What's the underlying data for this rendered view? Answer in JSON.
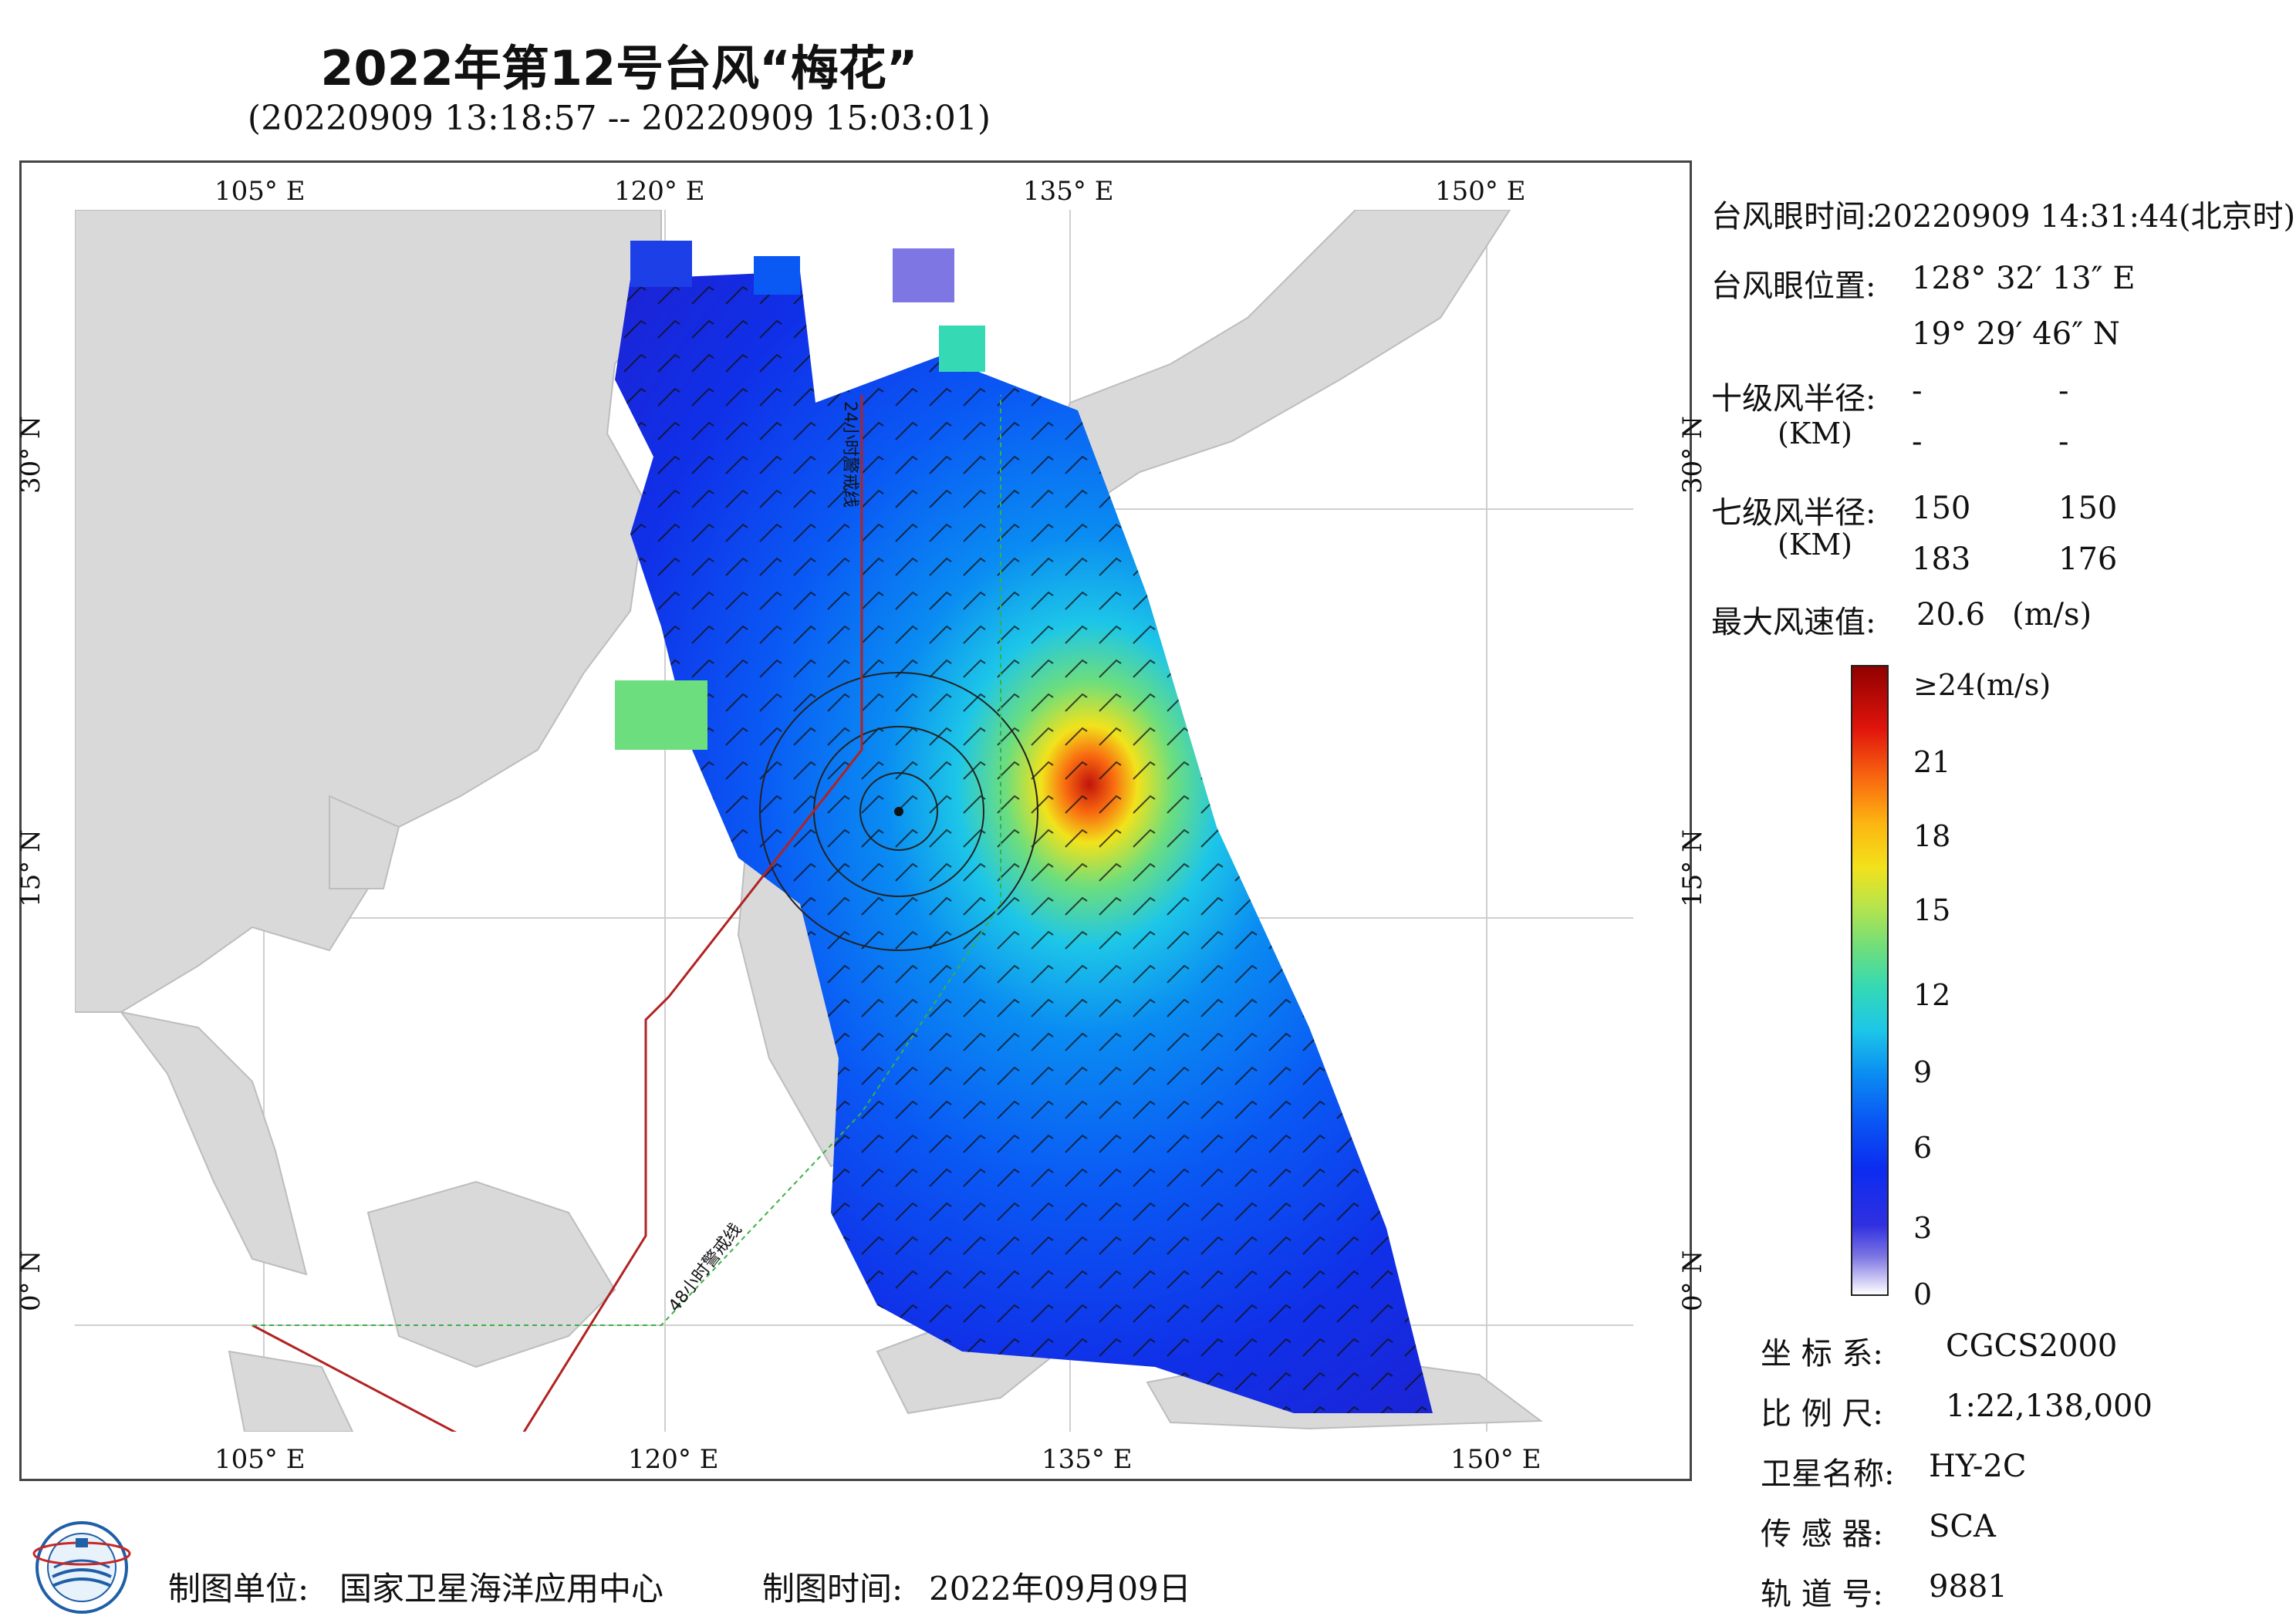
{
  "header": {
    "title": "2022年第12号台风“梅花”",
    "subtitle": "(20220909 13:18:57 -- 20220909 15:03:01)"
  },
  "map": {
    "top_lon_labels": [
      "105° E",
      "120° E",
      "135° E",
      "150° E"
    ],
    "bottom_lon_labels": [
      "105° E",
      "120° E",
      "135° E",
      "150° E"
    ],
    "left_lat_labels": [
      "30° N",
      "15° N",
      "0° N"
    ],
    "right_lat_labels": [
      "30° N",
      "15° N",
      "0° N"
    ],
    "line_24h_label": "24小时警戒线",
    "line_48h_label": "48小时警戒线",
    "colors": {
      "land": "#d9d9d9",
      "sea": "#ffffff",
      "line_24h": "#b22222",
      "line_48h": "#3cb043",
      "line_24h_north": "#b22222"
    }
  },
  "info": {
    "eye_time_label": "台风眼时间:",
    "eye_time_value": "20220909 14:31:44(北京时)",
    "eye_pos_label": "台风眼位置:",
    "eye_lon": "128° 32′ 13″ E",
    "eye_lat": "19° 29′ 46″ N",
    "r10_label": "十级风半径:",
    "r10_unit": "(KM)",
    "r10_values": [
      "-",
      "-",
      "-",
      "-"
    ],
    "r7_label": "七级风半径:",
    "r7_unit": "(KM)",
    "r7_values": [
      "150",
      "150",
      "183",
      "176"
    ],
    "max_wind_label": "最大风速值:",
    "max_wind_value": "20.6",
    "max_wind_unit": "(m/s)"
  },
  "colorbar": {
    "labels": [
      "≥24(m/s)",
      "21",
      "18",
      "15",
      "12",
      "9",
      "6",
      "3",
      "0"
    ]
  },
  "meta": {
    "crs_label": "坐 标 系:",
    "crs_value": "CGCS2000",
    "scale_label": "比 例 尺:",
    "scale_value": "1:22,138,000",
    "satellite_label": "卫星名称:",
    "satellite_value": "HY-2C",
    "sensor_label": "传 感 器:",
    "sensor_value": "SCA",
    "orbit_label": "轨 道 号:",
    "orbit_value": "9881"
  },
  "footer": {
    "producer_label": "制图单位:",
    "producer_value": "国家卫星海洋应用中心",
    "date_label": "制图时间:",
    "date_value": "2022年09月09日"
  }
}
